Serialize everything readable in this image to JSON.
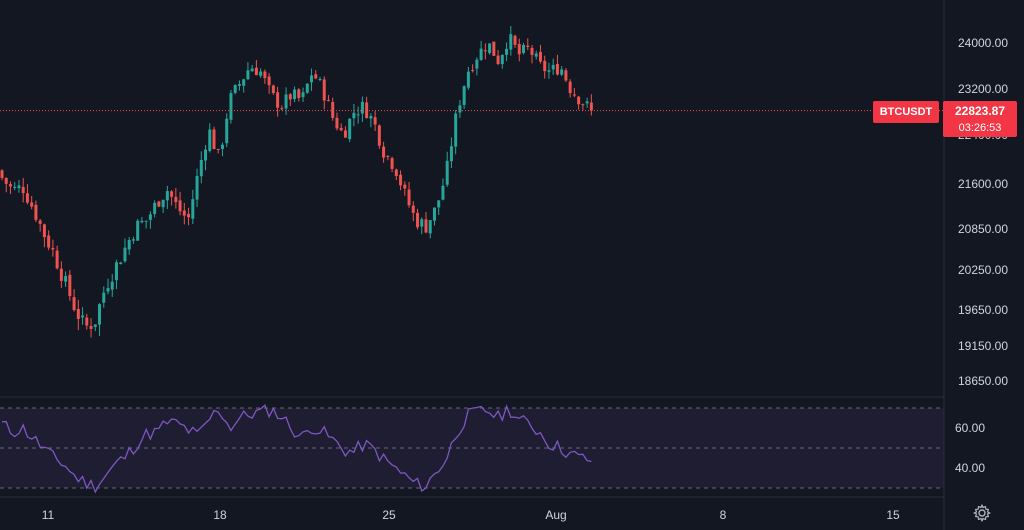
{
  "symbol_label": "BTCUSDT",
  "last_price_label": "22823.87",
  "countdown_label": "03:26:53",
  "colors": {
    "bg": "#131722",
    "up": "#26a69a",
    "down": "#ef5350",
    "rsi": "#7e57c2",
    "badge": "#f23645",
    "grid_text": "#d1d4dc"
  },
  "chart_data": [
    {
      "type": "candlestick",
      "price_ticks": [
        "24000.00",
        "23200.00",
        "22400.00",
        "21600.00",
        "20850.00",
        "20250.00",
        "19650.00",
        "19150.00",
        "18650.00"
      ],
      "price_tick_values": [
        24000,
        23200,
        22400,
        21600,
        20850,
        20250,
        19650,
        19150,
        18650
      ],
      "x_ticks": [
        "11",
        "18",
        "25",
        "Aug",
        "8",
        "15"
      ],
      "last_price": 22823.87,
      "ylim": [
        18500,
        24600
      ],
      "close_path": [
        21700,
        21500,
        21550,
        21200,
        20800,
        20500,
        20100,
        19700,
        19400,
        19500,
        20000,
        20300,
        20600,
        20900,
        21000,
        21300,
        21500,
        21200,
        21000,
        21800,
        22500,
        22000,
        23000,
        23300,
        23600,
        23500,
        23100,
        22900,
        23100,
        23000,
        23500,
        23200,
        22700,
        22400,
        22800,
        22900,
        22600,
        22100,
        21900,
        21400,
        21000,
        20900,
        21200,
        21800,
        22800,
        23500,
        23800,
        24000,
        23700,
        24100,
        23800,
        23900,
        23600,
        23500,
        23600,
        23200,
        23000,
        22823.87
      ]
    },
    {
      "type": "line",
      "name": "",
      "y_ticks": [
        "60.00",
        "40.00"
      ],
      "y_tick_values": [
        60,
        40
      ],
      "band_levels": [
        70,
        50,
        30
      ],
      "ylim": [
        28,
        72
      ],
      "values": [
        62,
        58,
        60,
        55,
        50,
        45,
        42,
        36,
        33,
        31,
        36,
        42,
        46,
        52,
        57,
        58,
        63,
        62,
        59,
        56,
        64,
        70,
        60,
        65,
        67,
        68,
        69,
        66,
        60,
        55,
        61,
        58,
        54,
        49,
        48,
        52,
        49,
        44,
        40,
        36,
        32,
        31,
        38,
        45,
        58,
        66,
        68,
        69,
        65,
        70,
        64,
        62,
        58,
        52,
        50,
        47,
        45,
        44
      ]
    }
  ]
}
